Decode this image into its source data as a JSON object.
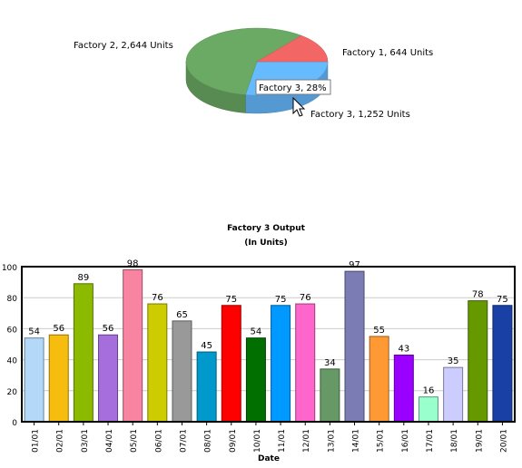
{
  "chart_data": [
    {
      "type": "pie",
      "style": "3d",
      "labels": [
        "Factory 1",
        "Factory 2",
        "Factory 3"
      ],
      "values": [
        644,
        2644,
        1252
      ],
      "unit": "Units",
      "colors": [
        "#f36666",
        "#6aaa64",
        "#66bbff"
      ],
      "slice_labels": [
        "Factory 1, 644 Units",
        "Factory 2, 2,644 Units",
        "Factory 3, 1,252 Units"
      ],
      "tooltip": "Factory 3, 28%"
    },
    {
      "type": "bar",
      "title": "Factory 3 Output",
      "subtitle": "(In Units)",
      "xlabel": "Date",
      "ylabel": "",
      "ylim": [
        0,
        100
      ],
      "yticks": [
        0,
        20,
        40,
        60,
        80,
        100
      ],
      "grid": true,
      "categories": [
        "01/01",
        "02/01",
        "03/01",
        "04/01",
        "05/01",
        "06/01",
        "07/01",
        "08/01",
        "09/01",
        "10/01",
        "11/01",
        "12/01",
        "13/01",
        "14/01",
        "15/01",
        "16/01",
        "17/01",
        "18/01",
        "19/01",
        "20/01"
      ],
      "values": [
        54,
        56,
        89,
        56,
        98,
        76,
        65,
        45,
        75,
        54,
        75,
        76,
        34,
        97,
        55,
        43,
        16,
        35,
        78,
        75
      ],
      "colors": [
        "#b4d8f8",
        "#f6bd0f",
        "#8bba00",
        "#a66edd",
        "#f984a1",
        "#cccc00",
        "#999999",
        "#0099cc",
        "#ff0000",
        "#006f00",
        "#0099ff",
        "#ff66cc",
        "#669966",
        "#7c7cb4",
        "#ff9933",
        "#9900ff",
        "#99ffcc",
        "#ccccff",
        "#669900",
        "#1941a5"
      ]
    }
  ]
}
